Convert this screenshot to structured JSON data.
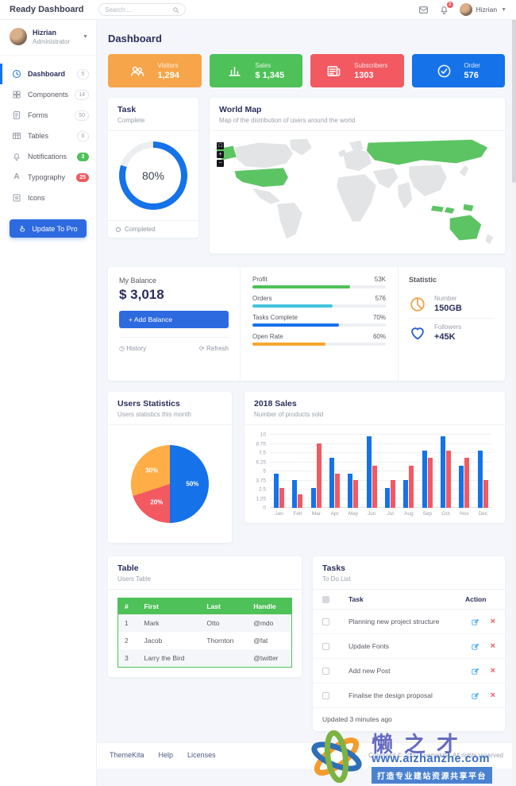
{
  "navbar": {
    "brand": "Ready Dashboard",
    "search_placeholder": "Search ...",
    "notification_count": "3",
    "user_name": "Hizrian"
  },
  "sidebar": {
    "user": {
      "name": "Hizrian",
      "role": "Administrator"
    },
    "items": [
      {
        "label": "Dashboard",
        "icon": "clock",
        "badge": "5",
        "badge_type": "default",
        "active": true
      },
      {
        "label": "Components",
        "icon": "grid",
        "badge": "14",
        "badge_type": "default"
      },
      {
        "label": "Forms",
        "icon": "file",
        "badge": "50",
        "badge_type": "default"
      },
      {
        "label": "Tables",
        "icon": "table",
        "badge": "6",
        "badge_type": "default"
      },
      {
        "label": "Notifications",
        "icon": "bell",
        "badge": "3",
        "badge_type": "success"
      },
      {
        "label": "Typography",
        "icon": "typography",
        "badge": "25",
        "badge_type": "danger"
      },
      {
        "label": "Icons",
        "icon": "square",
        "badge": "",
        "badge_type": "none"
      }
    ],
    "cta_label": "Update To Pro"
  },
  "page_title": "Dashboard",
  "stat_cards": [
    {
      "label": "Visitors",
      "value": "1,294",
      "color": "#f7a54a",
      "icon": "users"
    },
    {
      "label": "Sales",
      "value": "$ 1,345",
      "color": "#4ec158",
      "icon": "bars"
    },
    {
      "label": "Subscribers",
      "value": "1303",
      "color": "#f25961",
      "icon": "news"
    },
    {
      "label": "Order",
      "value": "576",
      "color": "#1572e8",
      "icon": "check"
    }
  ],
  "task_card": {
    "title": "Task",
    "subtitle": "Complete",
    "percent": 80,
    "percent_label": "80%",
    "legend": "Completed",
    "ring_color": "#1572e8"
  },
  "world_map": {
    "title": "World Map",
    "subtitle": "Map of the distribution of users around the world",
    "zoom_controls": [
      "□",
      "+",
      "−"
    ]
  },
  "balance_card": {
    "title": "My Balance",
    "amount": "$ 3,018",
    "add_button": "+ Add Balance",
    "history_label": "History",
    "refresh_label": "Refresh",
    "progress": [
      {
        "label": "Profit",
        "value": "53K",
        "pct": 73,
        "color": "#4ec158"
      },
      {
        "label": "Orders",
        "value": "576",
        "pct": 60,
        "color": "#41c5da"
      },
      {
        "label": "Tasks Complete",
        "value": "70%",
        "pct": 65,
        "color": "#1572e8"
      },
      {
        "label": "Open Rate",
        "value": "60%",
        "pct": 55,
        "color": "#f5a62f"
      }
    ],
    "statistic": {
      "title": "Statistic",
      "items": [
        {
          "label": "Number",
          "value": "150GB",
          "icon": "pie",
          "icon_color": "#e8a84c"
        },
        {
          "label": "Followers",
          "value": "+45K",
          "icon": "heart",
          "icon_color": "#2d5fd0"
        }
      ]
    }
  },
  "chart_data": [
    {
      "type": "pie",
      "title": "Users Statistics",
      "subtitle": "Users statistics this month",
      "slices": [
        {
          "label": "50%",
          "value": 50,
          "color": "#1572e8"
        },
        {
          "label": "20%",
          "value": 20,
          "color": "#f25961"
        },
        {
          "label": "30%",
          "value": 30,
          "color": "#ffad46"
        }
      ],
      "legend_position": "none"
    },
    {
      "type": "bar",
      "title": "2018 Sales",
      "subtitle": "Number of products sold",
      "categories": [
        "Jan",
        "Feb",
        "Mar",
        "Apr",
        "May",
        "Jun",
        "Jul",
        "Aug",
        "Sep",
        "Oct",
        "Nov",
        "Dec"
      ],
      "series": [
        {
          "name": "series-blue",
          "color": "#1572e8",
          "values": [
            4.7,
            3.8,
            2.7,
            6.8,
            4.7,
            9.8,
            2.7,
            3.8,
            7.8,
            9.8,
            5.8,
            7.8
          ]
        },
        {
          "name": "series-red",
          "color": "#f25961",
          "values": [
            2.7,
            1.8,
            8.8,
            4.7,
            3.8,
            5.8,
            3.8,
            5.8,
            6.8,
            7.8,
            6.8,
            3.8
          ]
        }
      ],
      "ylim": [
        0,
        10
      ],
      "yticks": [
        "10",
        "8.75",
        "7.5",
        "6.25",
        "5",
        "3.75",
        "2.5",
        "1.25",
        "0"
      ],
      "grid": true
    }
  ],
  "table_card": {
    "title": "Table",
    "subtitle": "Users Table",
    "headers": [
      "#",
      "First",
      "Last",
      "Handle"
    ],
    "rows": [
      [
        "1",
        "Mark",
        "Otto",
        "@mdo"
      ],
      [
        "2",
        "Jacob",
        "Thornton",
        "@fat"
      ],
      [
        "3",
        "Larry the Bird",
        "",
        "@twitter"
      ]
    ]
  },
  "tasks_card": {
    "title": "Tasks",
    "subtitle": "To Do List",
    "task_col": "Task",
    "action_col": "Action",
    "items": [
      "Planning new project structure",
      "Update Fonts",
      "Add new Post",
      "Finalise the design proposal"
    ],
    "updated": "Updated 3 minutes ago"
  },
  "footer": {
    "links": [
      "ThemeKita",
      "Help",
      "Licenses"
    ],
    "copyright": "Copyright © 2020 Themekita. All rights reserved"
  },
  "watermark": {
    "name": "懒之才",
    "site": "www.aizhanzhe.com",
    "tagline": "打造专业建站资源共享平台"
  },
  "map_colors": {
    "land": "#e3e4e6",
    "highlight": "#5cc463"
  }
}
